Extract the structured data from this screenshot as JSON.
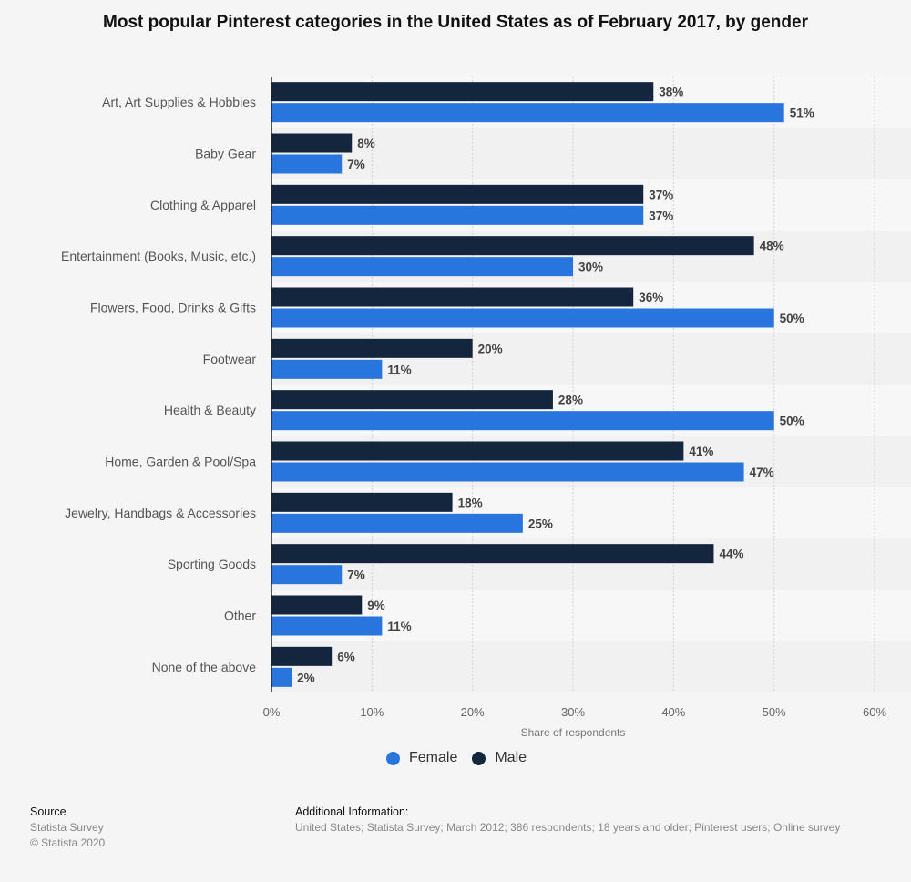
{
  "chart_data": {
    "type": "bar",
    "orientation": "horizontal",
    "title": "Most popular Pinterest categories in the United States as of February 2017, by gender",
    "xlabel": "Share of respondents",
    "ylabel": "",
    "xlim": [
      0,
      60
    ],
    "x_ticks": [
      "0%",
      "10%",
      "20%",
      "30%",
      "40%",
      "50%",
      "60%"
    ],
    "grid": true,
    "legend_position": "bottom",
    "categories": [
      "Art, Art Supplies & Hobbies",
      "Baby Gear",
      "Clothing & Apparel",
      "Entertainment (Books, Music, etc.)",
      "Flowers, Food, Drinks & Gifts",
      "Footwear",
      "Health & Beauty",
      "Home, Garden & Pool/Spa",
      "Jewelry, Handbags & Accessories",
      "Sporting Goods",
      "Other",
      "None of the above"
    ],
    "series": [
      {
        "name": "Male",
        "color": "#13263d",
        "values": [
          38,
          8,
          37,
          48,
          36,
          20,
          28,
          41,
          18,
          44,
          9,
          6
        ]
      },
      {
        "name": "Female",
        "color": "#2876dd",
        "values": [
          51,
          7,
          37,
          30,
          50,
          11,
          50,
          47,
          25,
          7,
          11,
          2
        ]
      }
    ],
    "value_suffix": "%"
  },
  "legend": {
    "items": [
      {
        "label": "Female",
        "color": "#2876dd"
      },
      {
        "label": "Male",
        "color": "#13263d"
      }
    ]
  },
  "footer": {
    "source_heading": "Source",
    "source_lines": [
      "Statista Survey",
      "© Statista 2020"
    ],
    "info_heading": "Additional Information:",
    "info_text": "United States; Statista Survey; March 2012; 386 respondents; 18 years and older; Pinterest users; Online survey"
  }
}
